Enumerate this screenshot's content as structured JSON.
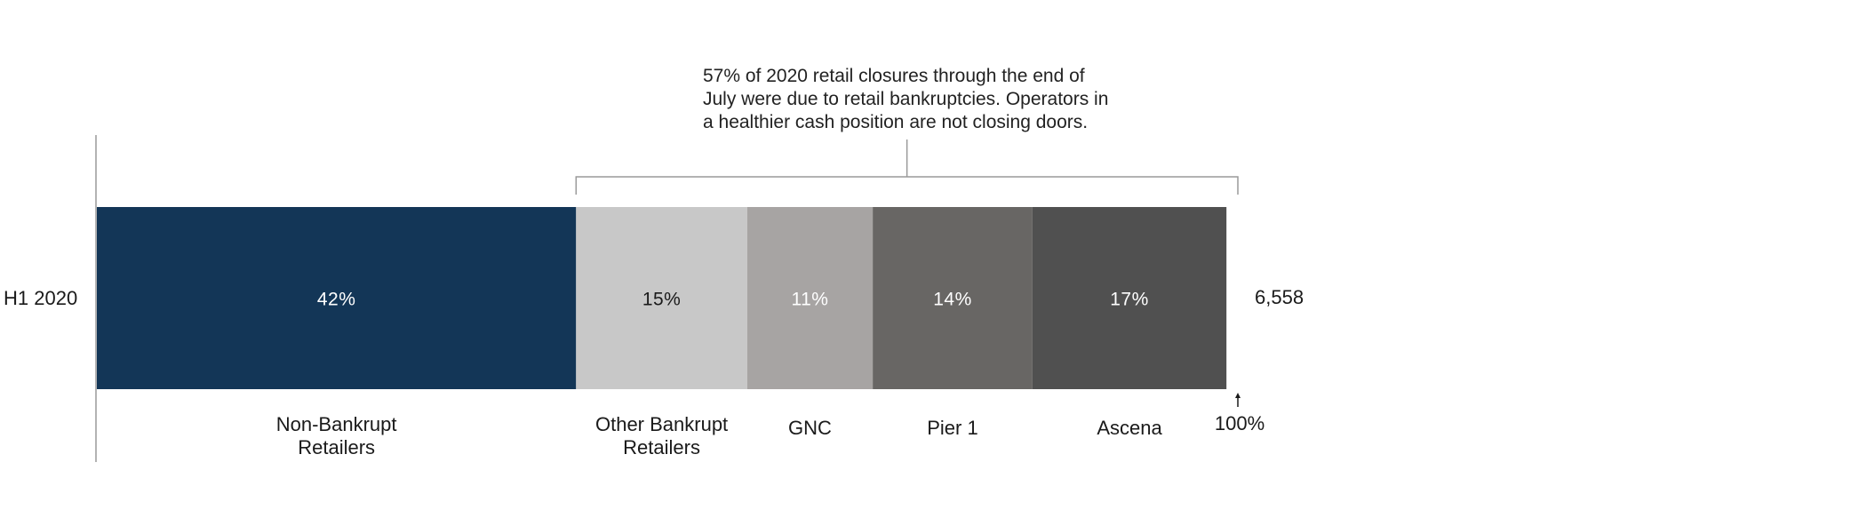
{
  "chart_data": {
    "type": "bar",
    "orientation": "horizontal",
    "stacked": true,
    "categories": [
      "H1 2020"
    ],
    "series": [
      {
        "name": "Non-Bankrupt Retailers",
        "label_lines": [
          "Non-Bankrupt",
          "Retailers"
        ],
        "values": [
          42
        ],
        "label": "42%",
        "color": "#133657",
        "label_color": "#ffffff"
      },
      {
        "name": "Other Bankrupt Retailers",
        "label_lines": [
          "Other Bankrupt",
          "Retailers"
        ],
        "values": [
          15
        ],
        "label": "15%",
        "color": "#c8c8c8",
        "label_color": "#1a1a1a"
      },
      {
        "name": "GNC",
        "label_lines": [
          "GNC"
        ],
        "values": [
          11
        ],
        "label": "11%",
        "color": "#a7a4a3",
        "label_color": "#ffffff"
      },
      {
        "name": "Pier 1",
        "label_lines": [
          "Pier 1"
        ],
        "values": [
          14
        ],
        "label": "14%",
        "color": "#686664",
        "label_color": "#ffffff"
      },
      {
        "name": "Ascena",
        "label_lines": [
          "Ascena"
        ],
        "values": [
          17
        ],
        "label": "17%",
        "color": "#505050",
        "label_color": "#ffffff"
      }
    ],
    "total_label": "6,558",
    "end_label": "100%",
    "annotation": {
      "lines": [
        "57% of 2020 retail closures through the end of",
        "July were due to retail bankruptcies. Operators in",
        "a healthier cash position are not closing doors."
      ],
      "bracket_from_series": 1
    },
    "xlim": [
      0,
      100
    ],
    "grid": false,
    "legend": "none"
  }
}
